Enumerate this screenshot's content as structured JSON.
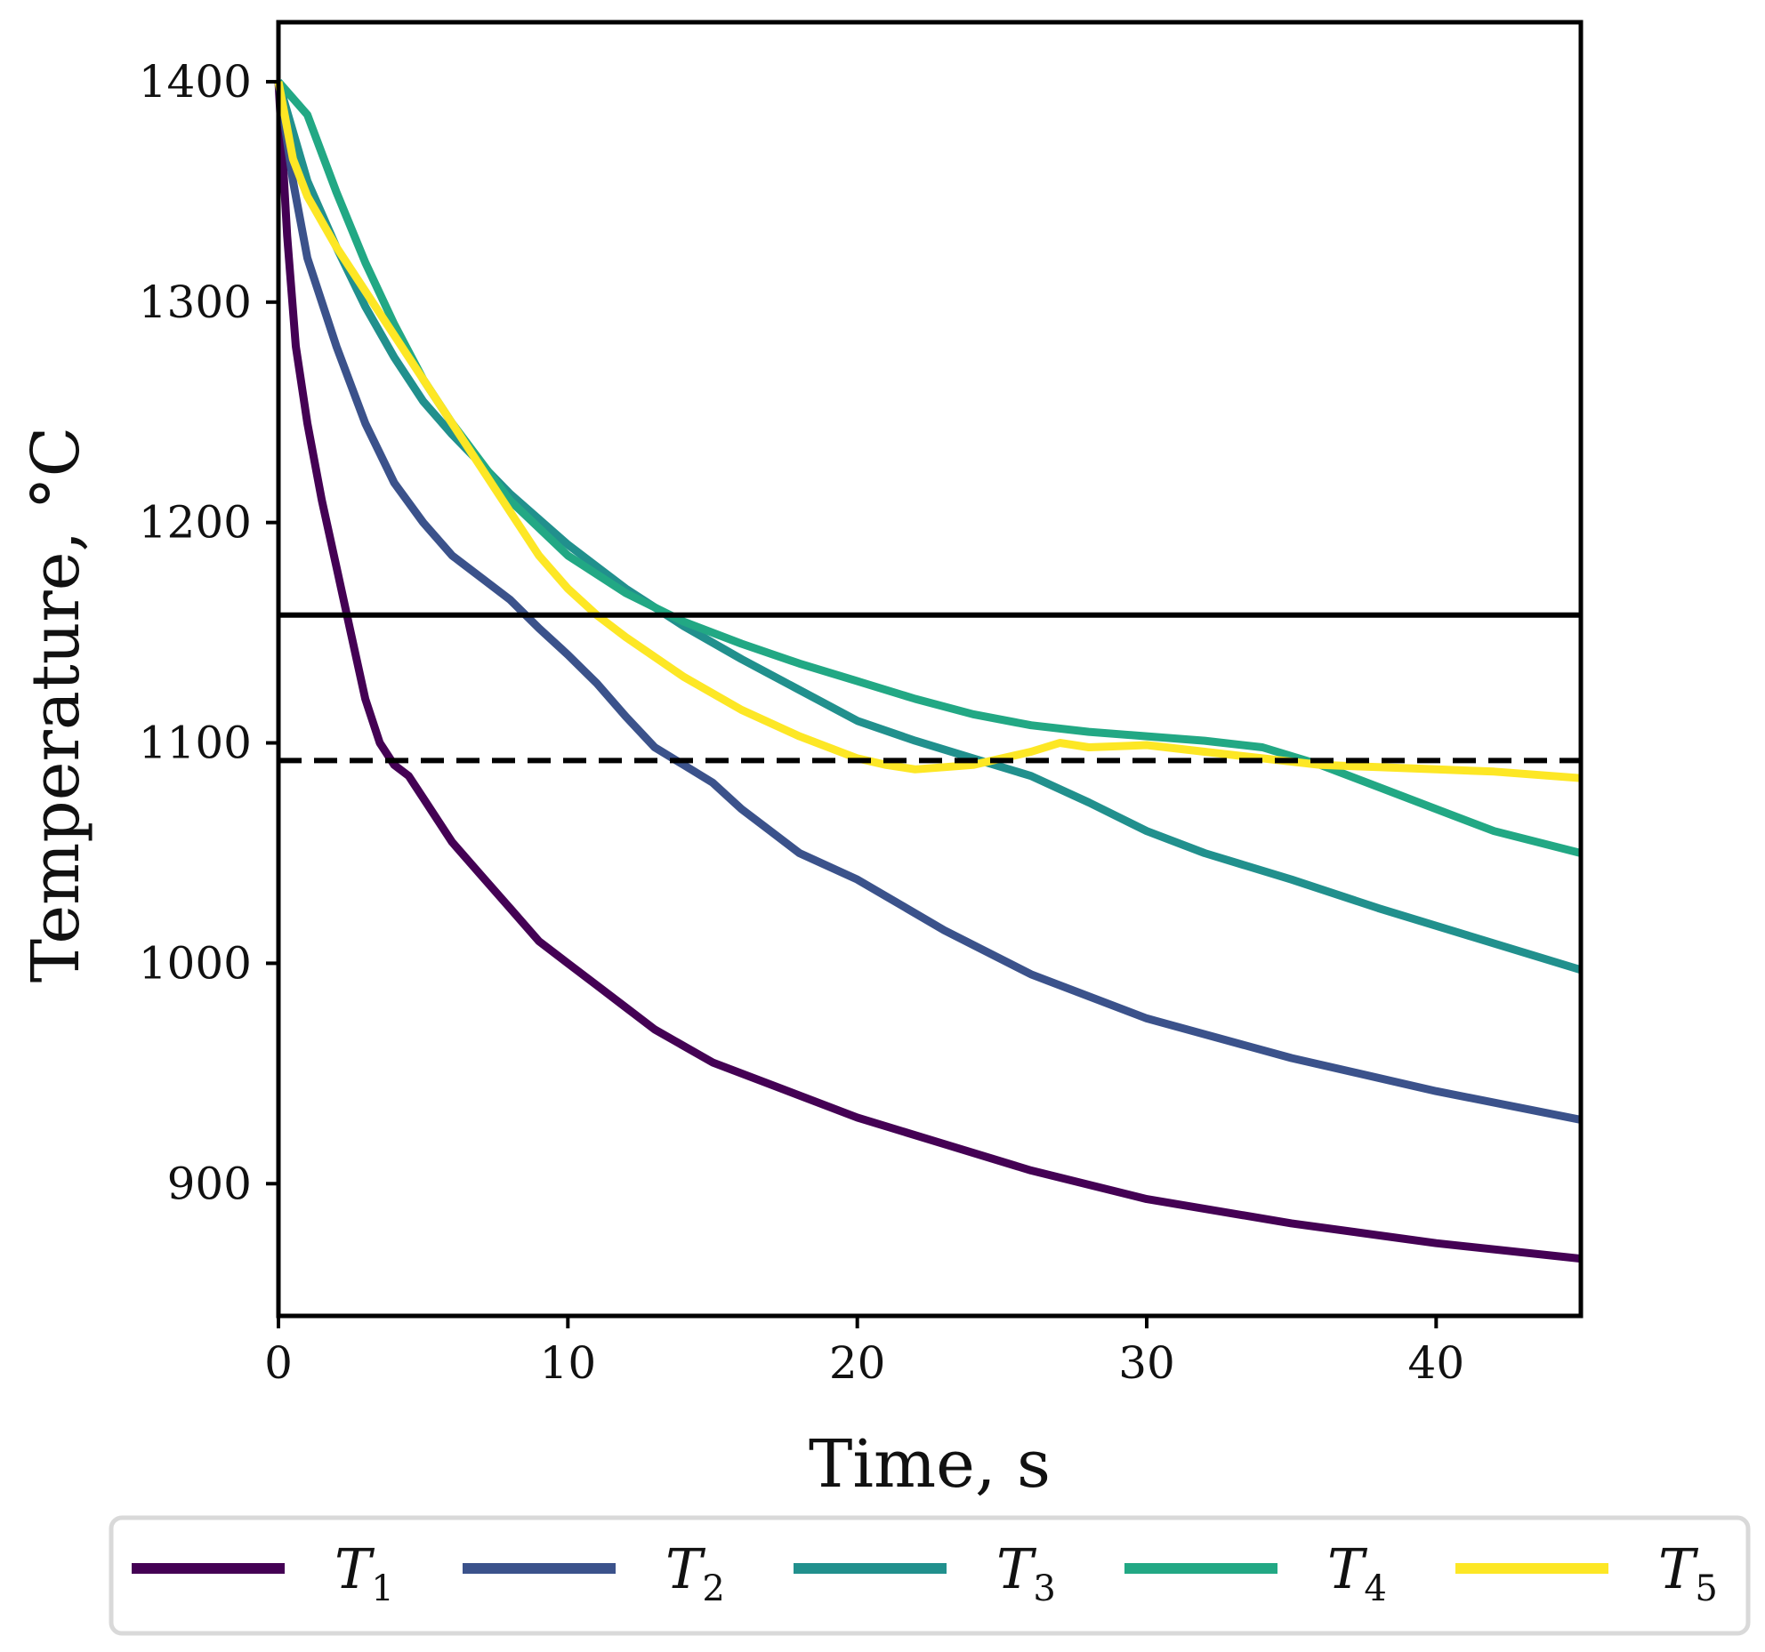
{
  "chart_data": {
    "type": "line",
    "title": "",
    "xlabel": "Time, s",
    "ylabel": "Temperature, °C",
    "xlim": [
      0,
      45
    ],
    "ylim": [
      840,
      1427
    ],
    "xticks": [
      0,
      10,
      20,
      30,
      40
    ],
    "yticks": [
      900,
      1000,
      1100,
      1200,
      1300,
      1400
    ],
    "grid": false,
    "legend_position": "bottom",
    "reference_lines": [
      {
        "name": "solid-threshold",
        "y": 1158,
        "style": "solid",
        "color": "#000000"
      },
      {
        "name": "dashed-threshold",
        "y": 1092,
        "style": "dashed",
        "color": "#000000"
      }
    ],
    "series": [
      {
        "name": "T1",
        "symbol": "T",
        "subscript": "1",
        "color": "#440154",
        "x": [
          0,
          0.3,
          0.6,
          1,
          1.5,
          2,
          2.5,
          3,
          3.5,
          4,
          4.5,
          5,
          6,
          7,
          8,
          9,
          10,
          11,
          12,
          13,
          15,
          17,
          20,
          23,
          26,
          30,
          35,
          40,
          45
        ],
        "y": [
          1400,
          1330,
          1280,
          1245,
          1210,
          1180,
          1150,
          1120,
          1100,
          1090,
          1085,
          1075,
          1055,
          1040,
          1025,
          1010,
          1000,
          990,
          980,
          970,
          955,
          945,
          930,
          918,
          906,
          893,
          882,
          873,
          866
        ]
      },
      {
        "name": "T2",
        "symbol": "T",
        "subscript": "2",
        "color": "#3b528b",
        "x": [
          0,
          0.5,
          1,
          2,
          3,
          4,
          5,
          6,
          7,
          8,
          9,
          10,
          11,
          12,
          13,
          14,
          15,
          16,
          17,
          18,
          20,
          23,
          26,
          30,
          35,
          40,
          45
        ],
        "y": [
          1400,
          1355,
          1320,
          1280,
          1245,
          1218,
          1200,
          1185,
          1175,
          1165,
          1152,
          1140,
          1127,
          1112,
          1098,
          1090,
          1082,
          1070,
          1060,
          1050,
          1038,
          1015,
          995,
          975,
          957,
          942,
          929
        ]
      },
      {
        "name": "T3",
        "symbol": "T",
        "subscript": "3",
        "color": "#21908d",
        "x": [
          0,
          1,
          2,
          3,
          4,
          5,
          6,
          8,
          10,
          12,
          14,
          16,
          18,
          20,
          22,
          24,
          26,
          28,
          30,
          32,
          35,
          38,
          41,
          45
        ],
        "y": [
          1400,
          1355,
          1325,
          1298,
          1275,
          1255,
          1240,
          1213,
          1190,
          1170,
          1153,
          1138,
          1124,
          1110,
          1101,
          1093,
          1085,
          1073,
          1060,
          1050,
          1038,
          1025,
          1013,
          997
        ]
      },
      {
        "name": "T4",
        "symbol": "T",
        "subscript": "4",
        "color": "#22a884",
        "x": [
          0,
          1,
          2,
          3,
          4,
          5,
          6,
          8,
          10,
          12,
          14,
          16,
          18,
          20,
          22,
          24,
          26,
          28,
          30,
          32,
          34,
          36,
          38,
          40,
          42,
          45
        ],
        "y": [
          1400,
          1385,
          1350,
          1318,
          1290,
          1265,
          1245,
          1210,
          1185,
          1168,
          1155,
          1145,
          1136,
          1128,
          1120,
          1113,
          1108,
          1105,
          1103,
          1101,
          1098,
          1090,
          1080,
          1070,
          1060,
          1050
        ]
      },
      {
        "name": "T5",
        "symbol": "T",
        "subscript": "5",
        "color": "#fde725",
        "x": [
          0,
          0.5,
          1,
          2,
          3,
          4,
          5,
          6,
          7,
          8,
          9,
          10,
          11,
          12,
          14,
          16,
          18,
          20,
          21,
          22,
          23,
          24,
          25,
          26,
          27,
          28,
          30,
          32,
          34,
          36,
          38,
          40,
          42,
          45
        ],
        "y": [
          1400,
          1365,
          1348,
          1325,
          1305,
          1285,
          1265,
          1245,
          1225,
          1205,
          1185,
          1170,
          1158,
          1148,
          1130,
          1115,
          1103,
          1093,
          1090,
          1088,
          1089,
          1090,
          1093,
          1096,
          1100,
          1098,
          1099,
          1096,
          1093,
          1090,
          1089,
          1088,
          1087,
          1084
        ]
      }
    ]
  }
}
